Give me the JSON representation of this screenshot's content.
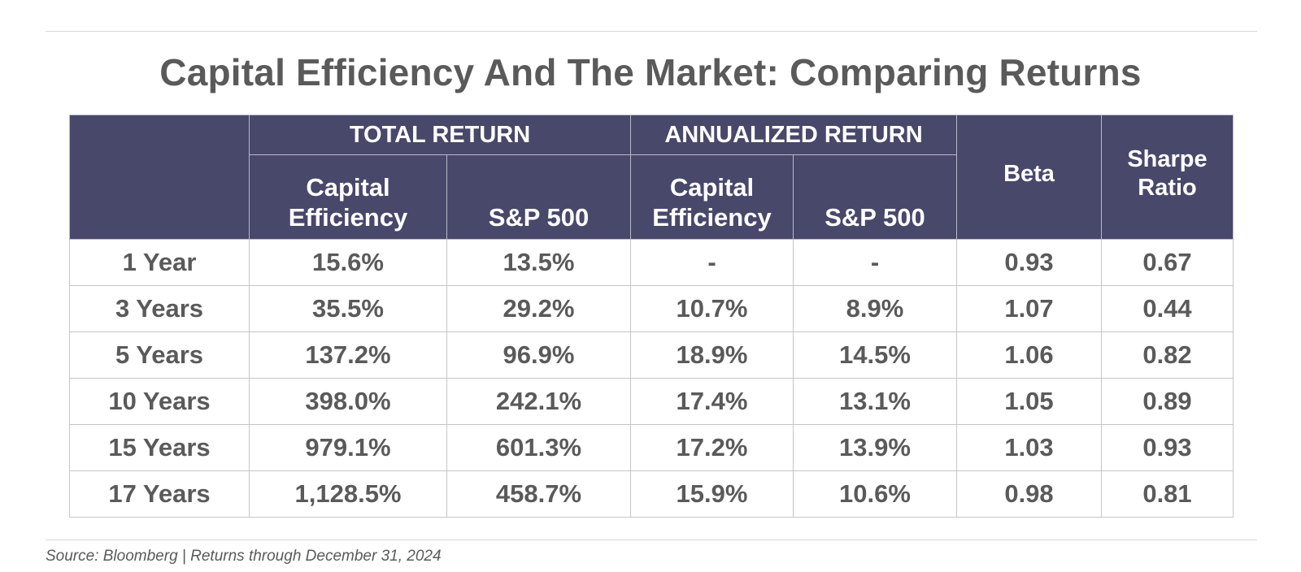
{
  "chart_data": {
    "type": "table",
    "title": "Capital Efficiency And The Market: Comparing Returns",
    "group_headers": {
      "total_return": "TOTAL RETURN",
      "annualized_return": "ANNUALIZED RETURN"
    },
    "column_headers": {
      "total_capital_efficiency_line1": "Capital",
      "total_capital_efficiency_line2": "Efficiency",
      "total_sp500": "S&P 500",
      "annualized_capital_efficiency_line1": "Capital",
      "annualized_capital_efficiency_line2": "Efficiency",
      "annualized_sp500": "S&P 500",
      "beta": "Beta",
      "sharpe_line1": "Sharpe",
      "sharpe_line2": "Ratio"
    },
    "rows": [
      {
        "period": "1 Year",
        "total_ce": "15.6%",
        "total_sp": "13.5%",
        "ann_ce": "-",
        "ann_sp": "-",
        "beta": "0.93",
        "sharpe": "0.67"
      },
      {
        "period": "3 Years",
        "total_ce": "35.5%",
        "total_sp": "29.2%",
        "ann_ce": "10.7%",
        "ann_sp": "8.9%",
        "beta": "1.07",
        "sharpe": "0.44"
      },
      {
        "period": "5 Years",
        "total_ce": "137.2%",
        "total_sp": "96.9%",
        "ann_ce": "18.9%",
        "ann_sp": "14.5%",
        "beta": "1.06",
        "sharpe": "0.82"
      },
      {
        "period": "10 Years",
        "total_ce": "398.0%",
        "total_sp": "242.1%",
        "ann_ce": "17.4%",
        "ann_sp": "13.1%",
        "beta": "1.05",
        "sharpe": "0.89"
      },
      {
        "period": "15 Years",
        "total_ce": "979.1%",
        "total_sp": "601.3%",
        "ann_ce": "17.2%",
        "ann_sp": "13.9%",
        "beta": "1.03",
        "sharpe": "0.93"
      },
      {
        "period": "17 Years",
        "total_ce": "1,128.5%",
        "total_sp": "458.7%",
        "ann_ce": "15.9%",
        "ann_sp": "10.6%",
        "beta": "0.98",
        "sharpe": "0.81"
      }
    ],
    "source": "Source: Bloomberg | Returns through December 31, 2024"
  },
  "colors": {
    "header_background": "#48486a",
    "header_text": "#ffffff",
    "body_text": "#5a5a5a",
    "grid_lines": "#c6c6c6"
  }
}
